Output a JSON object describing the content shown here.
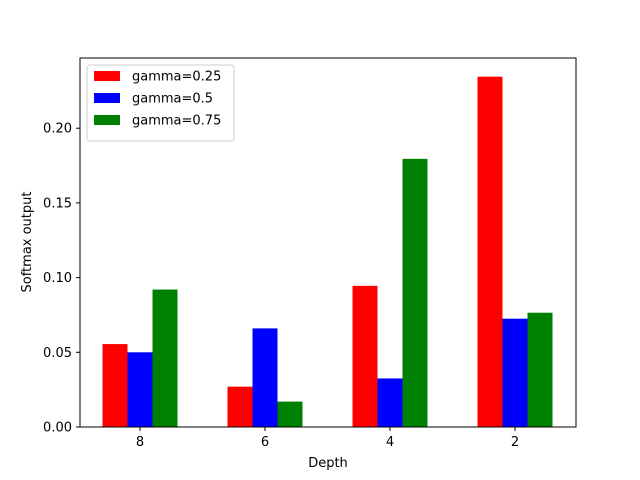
{
  "chart_data": {
    "type": "bar",
    "title": "",
    "xlabel": "Depth",
    "ylabel": "Softmax output",
    "categories": [
      "8",
      "6",
      "4",
      "2"
    ],
    "ylim": [
      0,
      0.247
    ],
    "yticks": [
      0.0,
      0.05,
      0.1,
      0.15,
      0.2
    ],
    "ytick_labels": [
      "0.00",
      "0.05",
      "0.10",
      "0.15",
      "0.20"
    ],
    "grid": false,
    "legend_position": "upper-left",
    "series": [
      {
        "name": "gamma=0.25",
        "color": "#ff0000",
        "values": [
          0.0555,
          0.027,
          0.0945,
          0.2345
        ]
      },
      {
        "name": "gamma=0.5",
        "color": "#0000ff",
        "values": [
          0.05,
          0.066,
          0.0325,
          0.0725
        ]
      },
      {
        "name": "gamma=0.75",
        "color": "#008000",
        "values": [
          0.092,
          0.017,
          0.1795,
          0.0765
        ]
      }
    ]
  }
}
